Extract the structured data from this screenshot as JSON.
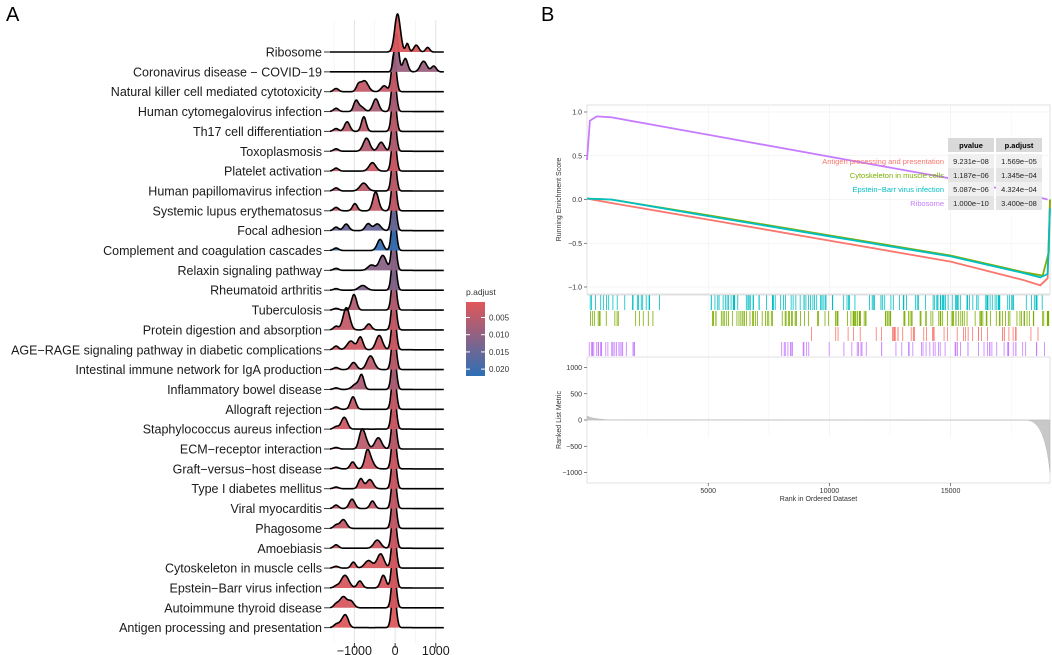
{
  "panels": {
    "a_letter": "A",
    "b_letter": "B"
  },
  "chart_data": [
    {
      "type": "ridgeline",
      "panel": "A",
      "categories_top_to_bottom": [
        "Ribosome",
        "Coronavirus disease − COVID−19",
        "Natural killer cell mediated cytotoxicity",
        "Human cytomegalovirus infection",
        "Th17 cell differentiation",
        "Toxoplasmosis",
        "Platelet activation",
        "Human papillomavirus infection",
        "Systemic lupus erythematosus",
        "Focal adhesion",
        "Complement and coagulation cascades",
        "Relaxin signaling pathway",
        "Rheumatoid arthritis",
        "Tuberculosis",
        "Protein digestion and absorption",
        "AGE−RAGE signaling pathway in diabetic complications",
        "Intestinal immune network for IgA production",
        "Inflammatory bowel disease",
        "Allograft rejection",
        "Staphylococcus aureus infection",
        "ECM−receptor interaction",
        "Graft−versus−host disease",
        "Type I diabetes mellitus",
        "Viral myocarditis",
        "Phagosome",
        "Amoebiasis",
        "Cytoskeleton in muscle cells",
        "Epstein−Barr virus infection",
        "Autoimmune thyroid disease",
        "Antigen processing and presentation"
      ],
      "p_adjust": [
        0.0012,
        0.009,
        0.004,
        0.007,
        0.005,
        0.006,
        0.003,
        0.005,
        0.004,
        0.015,
        0.021,
        0.011,
        0.012,
        0.006,
        0.004,
        0.003,
        0.005,
        0.007,
        0.004,
        0.003,
        0.005,
        0.003,
        0.003,
        0.004,
        0.004,
        0.003,
        0.002,
        0.002,
        0.002,
        0.001
      ],
      "x_ticks": [
        "−1000",
        "0",
        "1000"
      ],
      "x_tick_values": [
        -1000,
        0,
        1000
      ],
      "xlim": [
        -1600,
        1300
      ],
      "legend": {
        "title": "p.adjust",
        "labels": [
          "0.005",
          "0.010",
          "0.015",
          "0.020"
        ],
        "values": [
          0.005,
          0.01,
          0.015,
          0.02
        ],
        "range": [
          0.0005,
          0.022
        ],
        "color_low": "#e15759",
        "color_high": "#2e6fb5"
      }
    },
    {
      "type": "gsea",
      "panel": "B",
      "y_label": "Running Enrichment Score",
      "y_ticks": [
        "1.0",
        "0.5",
        "0.0",
        "−0.5",
        "−1.0"
      ],
      "y_tick_values": [
        1.0,
        0.5,
        0.0,
        -0.5,
        -1.0
      ],
      "ylim": [
        -1.08,
        1.08
      ],
      "x_label": "Rank in Ordered Dataset",
      "x_ticks": [
        "5000",
        "10000",
        "15000"
      ],
      "x_tick_values": [
        5000,
        10000,
        15000
      ],
      "xlim": [
        0,
        19100
      ],
      "ranked_y_label": "Ranked List Metric",
      "ranked_y_ticks": [
        "1000",
        "500",
        "0",
        "−500",
        "−1000"
      ],
      "ranked_y_tick_values": [
        1000,
        500,
        0,
        -500,
        -1000
      ],
      "table_headers": [
        "pvalue",
        "p.adjust"
      ],
      "series": [
        {
          "name": "Antigen processing and presentation",
          "color": "#f8766d",
          "pvalue": "9.231e−08",
          "padjust": "1.569e−05",
          "curve": [
            [
              0,
              0.01
            ],
            [
              1000,
              -0.04
            ],
            [
              5000,
              -0.23
            ],
            [
              10000,
              -0.47
            ],
            [
              15000,
              -0.71
            ],
            [
              18000,
              -0.92
            ],
            [
              18700,
              -0.98
            ],
            [
              19000,
              -0.9
            ],
            [
              19100,
              0.0
            ]
          ]
        },
        {
          "name": "Cytoskeleton in muscle cells",
          "color": "#7cae00",
          "pvalue": "1.187e−06",
          "padjust": "1.345e−04",
          "curve": [
            [
              0,
              0.01
            ],
            [
              1000,
              0.0
            ],
            [
              5000,
              -0.18
            ],
            [
              10000,
              -0.41
            ],
            [
              15000,
              -0.64
            ],
            [
              18000,
              -0.83
            ],
            [
              18800,
              -0.87
            ],
            [
              19050,
              -0.6
            ],
            [
              19100,
              0.0
            ]
          ]
        },
        {
          "name": "Epstein−Barr virus infection",
          "color": "#00bfc4",
          "pvalue": "5.087e−06",
          "padjust": "4.324e−04",
          "curve": [
            [
              0,
              0.01
            ],
            [
              1000,
              0.0
            ],
            [
              5000,
              -0.19
            ],
            [
              10000,
              -0.42
            ],
            [
              15000,
              -0.65
            ],
            [
              18000,
              -0.84
            ],
            [
              18700,
              -0.89
            ],
            [
              19000,
              -0.85
            ],
            [
              19100,
              -0.1
            ]
          ]
        },
        {
          "name": "Ribosome",
          "color": "#c77cff",
          "pvalue": "1.000e−10",
          "padjust": "3.400e−08",
          "curve": [
            [
              0,
              0.45
            ],
            [
              120,
              0.9
            ],
            [
              400,
              0.95
            ],
            [
              1000,
              0.94
            ],
            [
              5000,
              0.74
            ],
            [
              10000,
              0.49
            ],
            [
              15000,
              0.24
            ],
            [
              18000,
              0.07
            ],
            [
              19000,
              0.0
            ]
          ]
        }
      ]
    }
  ]
}
